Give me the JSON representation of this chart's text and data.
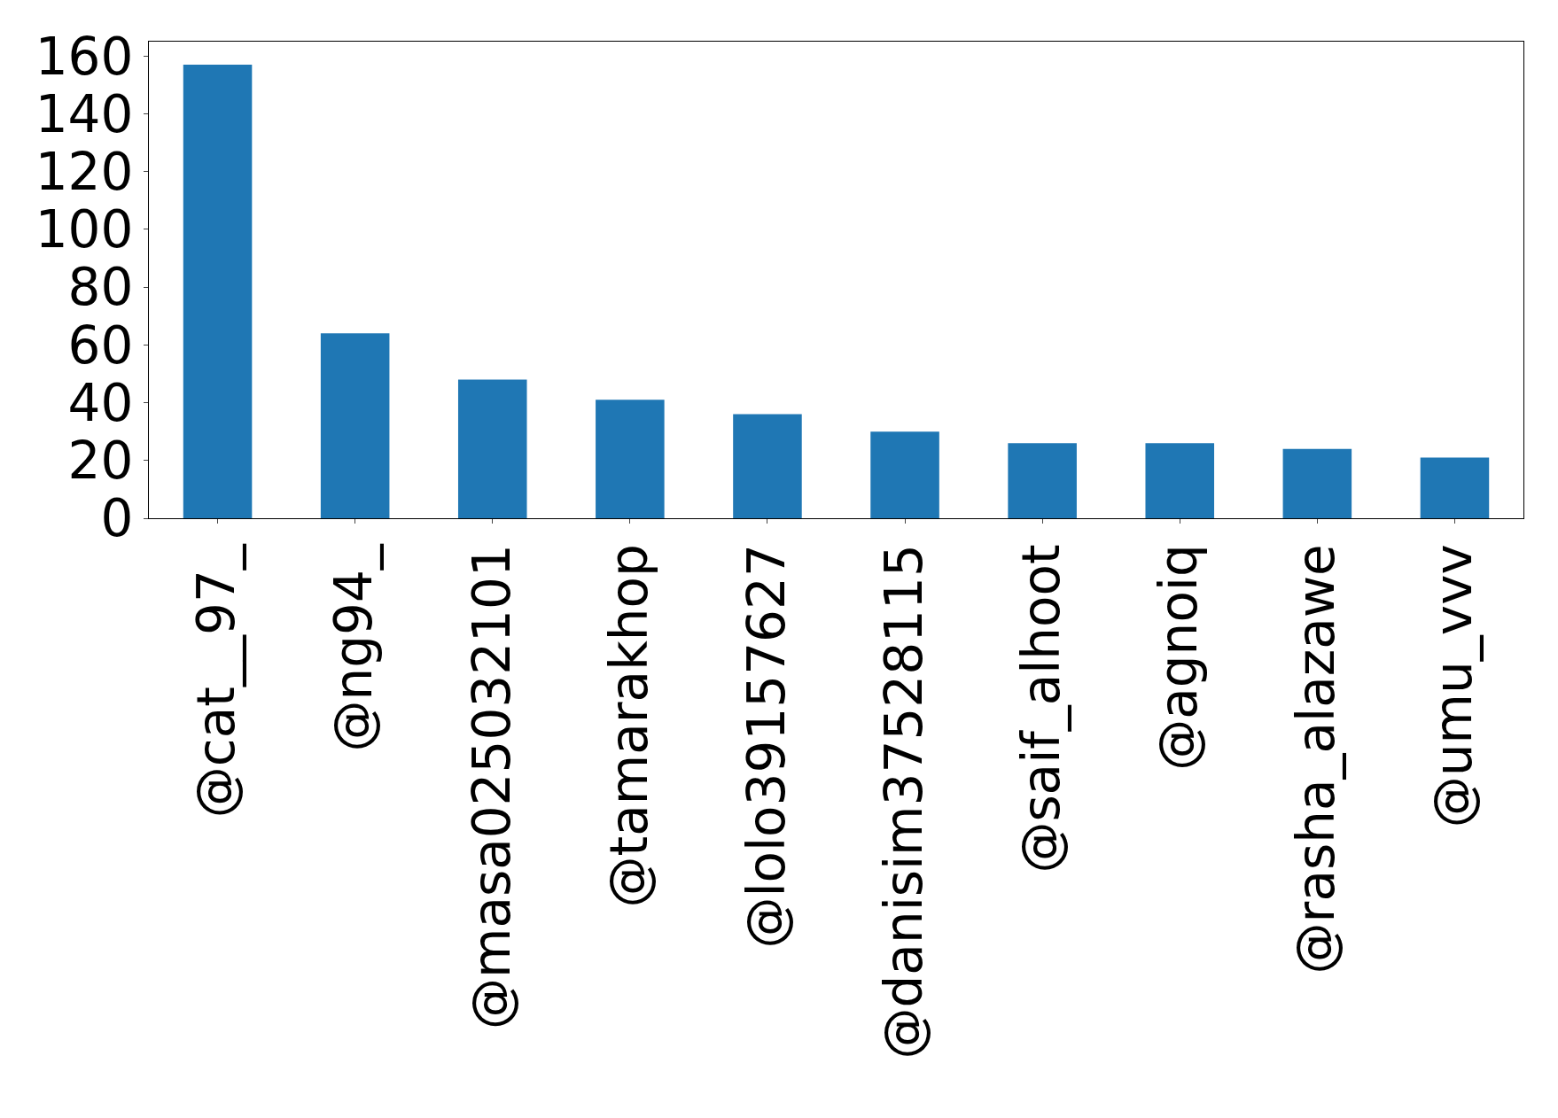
{
  "chart_data": {
    "type": "bar",
    "categories": [
      "@cat__97_",
      "@ng94_",
      "@masa025032101",
      "@tamarakhop",
      "@lolo39157627",
      "@danisim37528115",
      "@saif_alhoot",
      "@agnoiq",
      "@rasha_alazawe",
      "@umu_vvv"
    ],
    "values": [
      157,
      64,
      48,
      41,
      36,
      30,
      26,
      26,
      24,
      21
    ],
    "color": "#1f77b4",
    "ylim": [
      0,
      165
    ],
    "yticks": [
      0,
      20,
      40,
      60,
      80,
      100,
      120,
      140,
      160
    ]
  }
}
